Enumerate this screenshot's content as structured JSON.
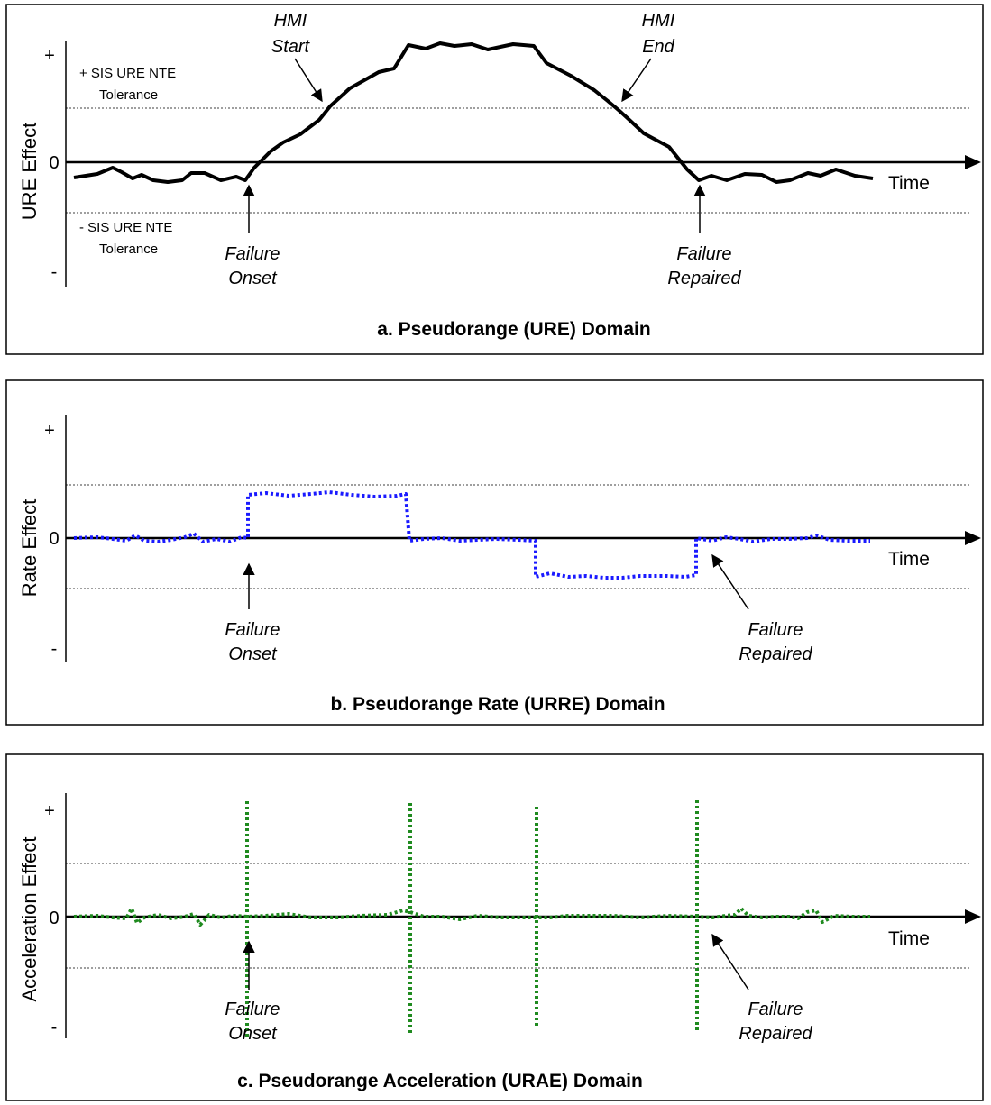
{
  "panels": [
    {
      "id": "a",
      "caption": "a.  Pseudorange (URE) Domain",
      "ylabel": "URE Effect",
      "xlabel": "Time",
      "tick_plus": "+",
      "tick_zero": "0",
      "tick_minus": "-",
      "tol_plus": [
        "+ SIS URE NTE",
        "Tolerance"
      ],
      "tol_minus": [
        "- SIS URE NTE",
        "Tolerance"
      ],
      "annotations": {
        "hmi_start": [
          "HMI",
          "Start"
        ],
        "hmi_end": [
          "HMI",
          "End"
        ],
        "failure_onset": [
          "Failure",
          "Onset"
        ],
        "failure_repaired": [
          "Failure",
          "Repaired"
        ]
      },
      "line_color": "#000000"
    },
    {
      "id": "b",
      "caption": "b.  Pseudorange Rate (URRE) Domain",
      "ylabel": "Rate Effect",
      "xlabel": "Time",
      "tick_plus": "+",
      "tick_zero": "0",
      "tick_minus": "-",
      "annotations": {
        "failure_onset": [
          "Failure",
          "Onset"
        ],
        "failure_repaired": [
          "Failure",
          "Repaired"
        ]
      },
      "line_color": "#1a1aff"
    },
    {
      "id": "c",
      "caption": "c.  Pseudorange Acceleration (URAE) Domain",
      "ylabel": "Acceleration Effect",
      "xlabel": "Time",
      "tick_plus": "+",
      "tick_zero": "0",
      "tick_minus": "-",
      "annotations": {
        "failure_onset": [
          "Failure",
          "Onset"
        ],
        "failure_repaired": [
          "Failure",
          "Repaired"
        ]
      },
      "line_color": "#1f8a1f"
    }
  ]
}
